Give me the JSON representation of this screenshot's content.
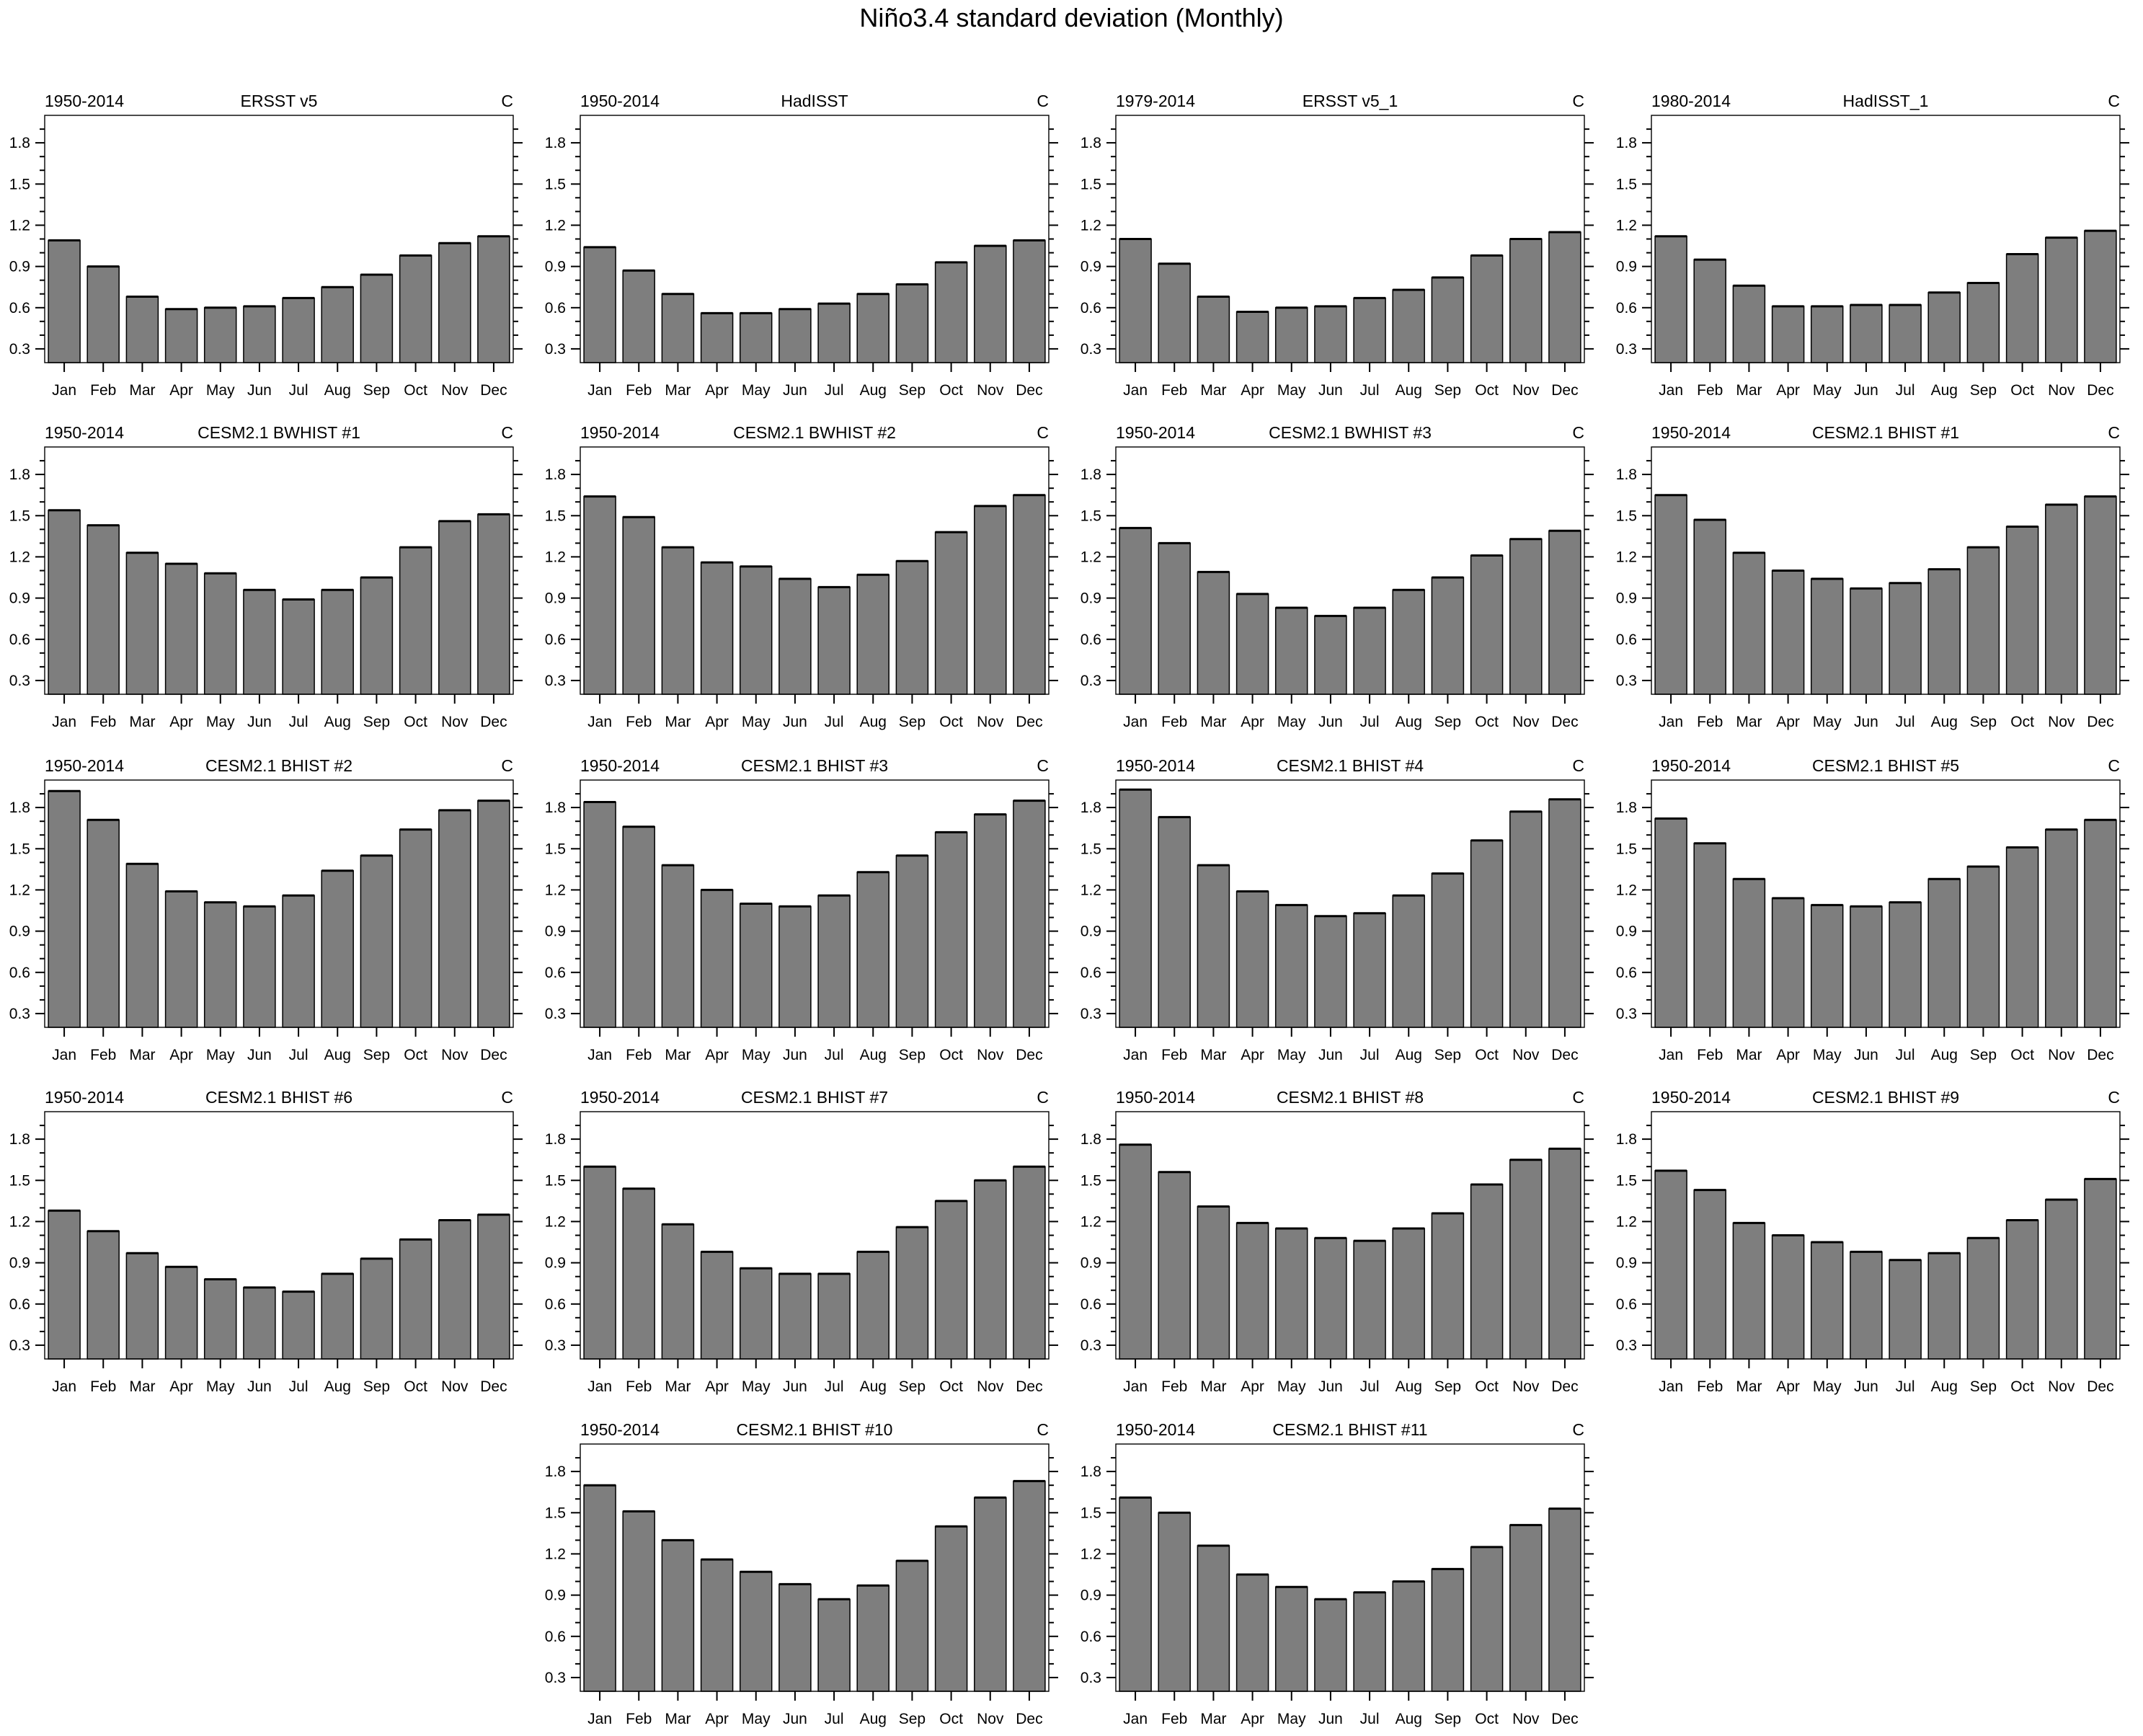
{
  "title": "Niño3.4 standard deviation (Monthly)",
  "chart_data": {
    "type": "bar",
    "categories": [
      "Jan",
      "Feb",
      "Mar",
      "Apr",
      "May",
      "Jun",
      "Jul",
      "Aug",
      "Sep",
      "Oct",
      "Nov",
      "Dec"
    ],
    "title": "Niño3.4 standard deviation (Monthly)",
    "xlabel": "",
    "ylabel": "",
    "ylim": [
      0.2,
      2.0
    ],
    "yticks_major": [
      0.3,
      0.6,
      0.9,
      1.2,
      1.5,
      1.8
    ],
    "minor_tick_step": 0.1,
    "grid": "off",
    "legend": "none",
    "style": {
      "bar_color": "#7e7e7e",
      "bar_edge_color": "#000000",
      "frame_color": "#000000",
      "text_color": "#000000"
    },
    "panels": [
      {
        "period": "1950-2014",
        "dataset": "ERSST v5",
        "units": "C",
        "values": [
          1.09,
          0.9,
          0.68,
          0.59,
          0.6,
          0.61,
          0.67,
          0.75,
          0.84,
          0.98,
          1.07,
          1.12
        ]
      },
      {
        "period": "1950-2014",
        "dataset": "HadISST",
        "units": "C",
        "values": [
          1.04,
          0.87,
          0.7,
          0.56,
          0.56,
          0.59,
          0.63,
          0.7,
          0.77,
          0.93,
          1.05,
          1.09
        ]
      },
      {
        "period": "1979-2014",
        "dataset": "ERSST v5_1",
        "units": "C",
        "values": [
          1.1,
          0.92,
          0.68,
          0.57,
          0.6,
          0.61,
          0.67,
          0.73,
          0.82,
          0.98,
          1.1,
          1.15
        ]
      },
      {
        "period": "1980-2014",
        "dataset": "HadISST_1",
        "units": "C",
        "values": [
          1.12,
          0.95,
          0.76,
          0.61,
          0.61,
          0.62,
          0.62,
          0.71,
          0.78,
          0.99,
          1.11,
          1.16
        ]
      },
      {
        "period": "1950-2014",
        "dataset": "CESM2.1 BWHIST #1",
        "units": "C",
        "values": [
          1.54,
          1.43,
          1.23,
          1.15,
          1.08,
          0.96,
          0.89,
          0.96,
          1.05,
          1.27,
          1.46,
          1.51
        ]
      },
      {
        "period": "1950-2014",
        "dataset": "CESM2.1 BWHIST #2",
        "units": "C",
        "values": [
          1.64,
          1.49,
          1.27,
          1.16,
          1.13,
          1.04,
          0.98,
          1.07,
          1.17,
          1.38,
          1.57,
          1.65
        ]
      },
      {
        "period": "1950-2014",
        "dataset": "CESM2.1 BWHIST #3",
        "units": "C",
        "values": [
          1.41,
          1.3,
          1.09,
          0.93,
          0.83,
          0.77,
          0.83,
          0.96,
          1.05,
          1.21,
          1.33,
          1.39
        ]
      },
      {
        "period": "1950-2014",
        "dataset": "CESM2.1 BHIST #1",
        "units": "C",
        "values": [
          1.65,
          1.47,
          1.23,
          1.1,
          1.04,
          0.97,
          1.01,
          1.11,
          1.27,
          1.42,
          1.58,
          1.64
        ]
      },
      {
        "period": "1950-2014",
        "dataset": "CESM2.1 BHIST #2",
        "units": "C",
        "values": [
          1.92,
          1.71,
          1.39,
          1.19,
          1.11,
          1.08,
          1.16,
          1.34,
          1.45,
          1.64,
          1.78,
          1.85
        ]
      },
      {
        "period": "1950-2014",
        "dataset": "CESM2.1 BHIST #3",
        "units": "C",
        "values": [
          1.84,
          1.66,
          1.38,
          1.2,
          1.1,
          1.08,
          1.16,
          1.33,
          1.45,
          1.62,
          1.75,
          1.85
        ]
      },
      {
        "period": "1950-2014",
        "dataset": "CESM2.1 BHIST #4",
        "units": "C",
        "values": [
          1.93,
          1.73,
          1.38,
          1.19,
          1.09,
          1.01,
          1.03,
          1.16,
          1.32,
          1.56,
          1.77,
          1.86
        ]
      },
      {
        "period": "1950-2014",
        "dataset": "CESM2.1 BHIST #5",
        "units": "C",
        "values": [
          1.72,
          1.54,
          1.28,
          1.14,
          1.09,
          1.08,
          1.11,
          1.28,
          1.37,
          1.51,
          1.64,
          1.71
        ]
      },
      {
        "period": "1950-2014",
        "dataset": "CESM2.1 BHIST #6",
        "units": "C",
        "values": [
          1.28,
          1.13,
          0.97,
          0.87,
          0.78,
          0.72,
          0.69,
          0.82,
          0.93,
          1.07,
          1.21,
          1.25
        ]
      },
      {
        "period": "1950-2014",
        "dataset": "CESM2.1 BHIST #7",
        "units": "C",
        "values": [
          1.6,
          1.44,
          1.18,
          0.98,
          0.86,
          0.82,
          0.82,
          0.98,
          1.16,
          1.35,
          1.5,
          1.6
        ]
      },
      {
        "period": "1950-2014",
        "dataset": "CESM2.1 BHIST #8",
        "units": "C",
        "values": [
          1.76,
          1.56,
          1.31,
          1.19,
          1.15,
          1.08,
          1.06,
          1.15,
          1.26,
          1.47,
          1.65,
          1.73
        ]
      },
      {
        "period": "1950-2014",
        "dataset": "CESM2.1 BHIST #9",
        "units": "C",
        "values": [
          1.57,
          1.43,
          1.19,
          1.1,
          1.05,
          0.98,
          0.92,
          0.97,
          1.08,
          1.21,
          1.36,
          1.51
        ]
      },
      {
        "period": "1950-2014",
        "dataset": "CESM2.1 BHIST #10",
        "units": "C",
        "values": [
          1.7,
          1.51,
          1.3,
          1.16,
          1.07,
          0.98,
          0.87,
          0.97,
          1.15,
          1.4,
          1.61,
          1.73
        ]
      },
      {
        "period": "1950-2014",
        "dataset": "CESM2.1 BHIST #11",
        "units": "C",
        "values": [
          1.61,
          1.5,
          1.26,
          1.05,
          0.96,
          0.87,
          0.92,
          1.0,
          1.09,
          1.25,
          1.41,
          1.53
        ]
      }
    ]
  }
}
